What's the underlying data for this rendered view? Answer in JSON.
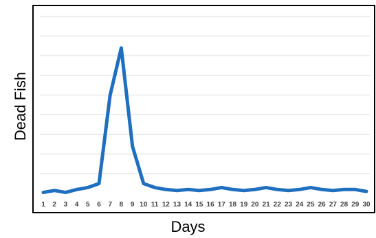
{
  "chart_data": {
    "type": "line",
    "title": "",
    "xlabel": "Days",
    "ylabel": "Dead Fish",
    "x": [
      1,
      2,
      3,
      4,
      5,
      6,
      7,
      8,
      9,
      10,
      11,
      12,
      13,
      14,
      15,
      16,
      17,
      18,
      19,
      20,
      21,
      22,
      23,
      24,
      25,
      26,
      27,
      28,
      29,
      30
    ],
    "series": [
      {
        "values": [
          0.1,
          0.3,
          0.1,
          0.4,
          0.6,
          1.0,
          10.0,
          14.8,
          4.8,
          1.0,
          0.6,
          0.4,
          0.3,
          0.4,
          0.3,
          0.4,
          0.6,
          0.4,
          0.3,
          0.4,
          0.6,
          0.4,
          0.3,
          0.4,
          0.6,
          0.4,
          0.3,
          0.4,
          0.4,
          0.2
        ]
      }
    ],
    "ylim": [
      0,
      18
    ],
    "y_tick_labels_shown": false,
    "grid": true,
    "colors": {
      "line": "#1f6fbf",
      "grid": "#d9d9d9",
      "frame": "#000000"
    }
  }
}
